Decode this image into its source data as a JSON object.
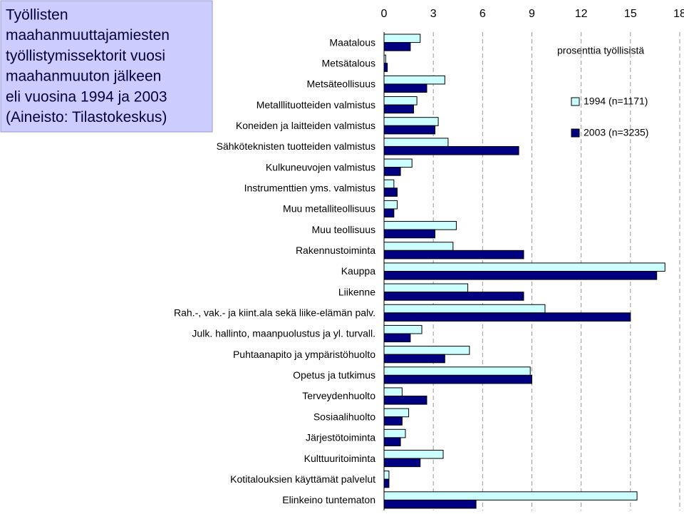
{
  "chart_data": {
    "type": "hbar",
    "title": [
      "Työllisten",
      "maahanmuuttajamiesten",
      "työllistymissektorit vuosi",
      "maahanmuuton jälkeen",
      "eli vuosina 1994 ja 2003",
      "(Aineisto: Tilastokeskus)"
    ],
    "annotation": "prosenttia työllisistä",
    "categories": [
      "Maatalous",
      "Metsätalous",
      "Metsäteollisuus",
      "Metalllituotteiden valmistus",
      "Koneiden ja laitteiden valmistus",
      "Sähköteknisten tuotteiden valmistus",
      "Kulkuneuvojen valmistus",
      "Instrumenttien yms. valmistus",
      "Muu metalliteollisuus",
      "Muu teollisuus",
      "Rakennustoiminta",
      "Kauppa",
      "Liikenne",
      "Rah.-, vak.- ja kiint.ala sekä liike-elämän palv.",
      "Julk. hallinto, maanpuolustus ja yl. turvall.",
      "Puhtaanapito ja ympäristöhuolto",
      "Opetus ja tutkimus",
      "Terveydenhuolto",
      "Sosiaalihuolto",
      "Järjestötoiminta",
      "Kulttuuritoiminta",
      "Kotitalouksien käyttämät palvelut",
      "Elinkeino tuntematon"
    ],
    "series": [
      {
        "name": "1994 (n=1171)",
        "color": "#ccffff",
        "values": [
          2.2,
          0.1,
          3.7,
          2.0,
          3.3,
          3.9,
          1.7,
          0.6,
          0.8,
          4.4,
          4.2,
          17.1,
          5.1,
          9.8,
          2.3,
          5.2,
          8.9,
          1.1,
          1.5,
          1.3,
          3.6,
          0.3,
          15.4
        ]
      },
      {
        "name": "2003 (n=3235)",
        "color": "#000080",
        "values": [
          1.6,
          0.2,
          2.6,
          1.8,
          3.1,
          8.2,
          1.0,
          0.8,
          0.6,
          3.1,
          8.5,
          16.6,
          8.5,
          15.0,
          1.6,
          3.7,
          9.0,
          2.6,
          1.1,
          1.0,
          2.2,
          0.3,
          5.6
        ]
      }
    ],
    "xlim": [
      0,
      18
    ],
    "xticks": [
      0,
      3,
      6,
      9,
      12,
      15,
      18
    ],
    "grid": true
  }
}
